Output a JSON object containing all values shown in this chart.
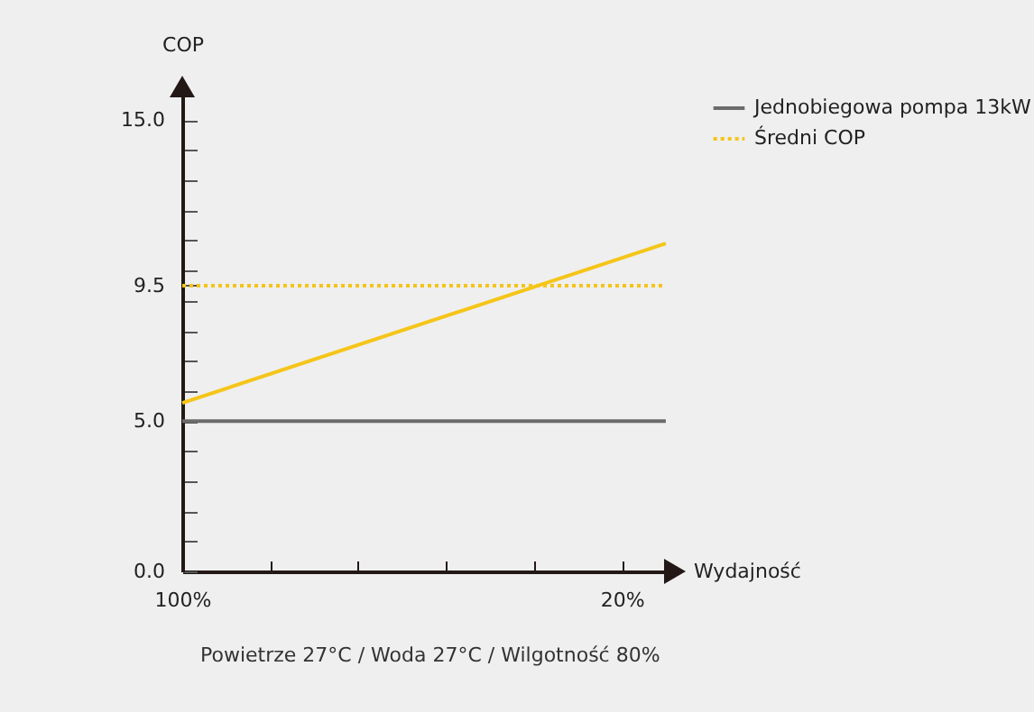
{
  "chart_data": {
    "type": "line",
    "ylabel": "COP",
    "xlabel": "Wydajność",
    "xlim": [
      100,
      11
    ],
    "ylim": [
      0,
      16
    ],
    "xticks": [
      {
        "value": 100,
        "label": "100%"
      },
      {
        "value": 84,
        "label": null
      },
      {
        "value": 68,
        "label": null
      },
      {
        "value": 52,
        "label": null
      },
      {
        "value": 36,
        "label": null
      },
      {
        "value": 20,
        "label": "20%"
      }
    ],
    "yticks": [
      {
        "value": 0,
        "label": "0.0"
      },
      {
        "value": 1,
        "label": null
      },
      {
        "value": 2,
        "label": null
      },
      {
        "value": 3,
        "label": null
      },
      {
        "value": 4,
        "label": null
      },
      {
        "value": 5,
        "label": "5.0"
      },
      {
        "value": 6,
        "label": null
      },
      {
        "value": 7,
        "label": null
      },
      {
        "value": 8,
        "label": null
      },
      {
        "value": 9,
        "label": null
      },
      {
        "value": 9.5,
        "label": "9.5"
      },
      {
        "value": 10,
        "label": null
      },
      {
        "value": 11,
        "label": null
      },
      {
        "value": 12,
        "label": null
      },
      {
        "value": 13,
        "label": null
      },
      {
        "value": 14,
        "label": null
      },
      {
        "value": 15,
        "label": "15.0"
      }
    ],
    "x": [
      100,
      12
    ],
    "series": [
      {
        "color": "#f5c518",
        "values": [
          5.6,
          10.9
        ]
      },
      {
        "name": "Jednobiegowa pompa 13kW",
        "color": "#6b6b6b",
        "values": [
          5.0,
          5.0
        ]
      },
      {
        "name": "Średni COP",
        "color": "#f5c518",
        "line_style": "dotted",
        "values": [
          9.5,
          9.5
        ]
      }
    ],
    "legend": "right",
    "grid": false,
    "annotations": [
      "Powietrze 27°C / Woda 27°C / Wilgotność 80%"
    ]
  }
}
